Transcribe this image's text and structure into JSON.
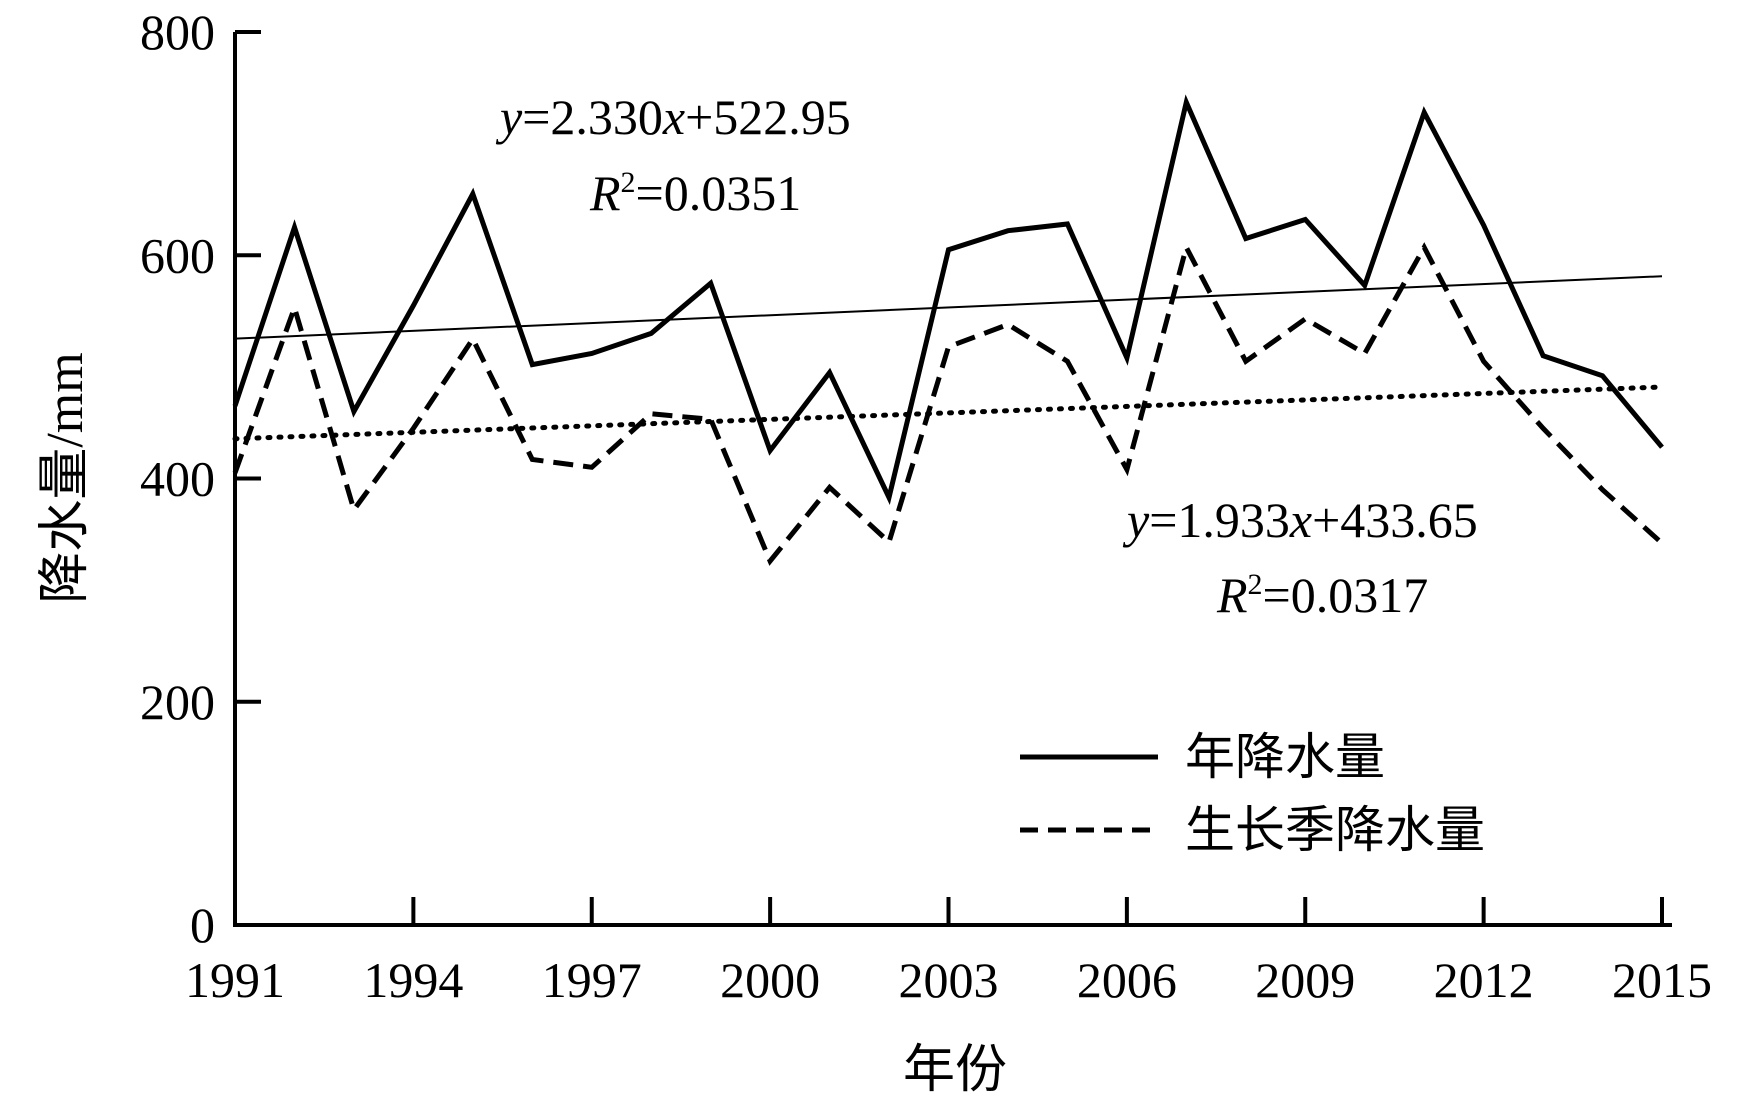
{
  "chart_data": {
    "type": "line",
    "title": "",
    "xlabel": "年份",
    "ylabel": "降水量/mm",
    "xlim": [
      1991,
      2015
    ],
    "ylim": [
      0,
      800
    ],
    "x_ticks": [
      "1991",
      "1994",
      "1997",
      "2000",
      "2003",
      "2006",
      "2009",
      "2012",
      "2015"
    ],
    "y_ticks": [
      "0",
      "200",
      "400",
      "600",
      "800"
    ],
    "grid": false,
    "legend_position": "bottom-right",
    "x": [
      1991,
      1992,
      1993,
      1994,
      1995,
      1996,
      1997,
      1998,
      1999,
      2000,
      2001,
      2002,
      2003,
      2004,
      2005,
      2006,
      2007,
      2008,
      2009,
      2010,
      2011,
      2012,
      2013,
      2014,
      2015
    ],
    "series": [
      {
        "name": "年降水量",
        "style": "solid",
        "values": [
          465,
          625,
          460,
          555,
          655,
          502,
          512,
          530,
          575,
          425,
          495,
          383,
          605,
          622,
          628,
          508,
          737,
          615,
          632,
          573,
          728,
          627,
          510,
          492,
          428
        ]
      },
      {
        "name": "生长季降水量",
        "style": "dashed",
        "values": [
          405,
          553,
          372,
          445,
          525,
          417,
          410,
          458,
          453,
          326,
          392,
          343,
          518,
          538,
          505,
          408,
          607,
          505,
          543,
          512,
          607,
          505,
          445,
          390,
          342
        ]
      }
    ],
    "trendlines": [
      {
        "for": "年降水量",
        "style": "thin-solid",
        "slope": 2.33,
        "intercept": 522.95,
        "eq_y_part": "y",
        "eq_rest": "=2.330",
        "eq_x_part": "x",
        "eq_tail": "+522.95",
        "r2_prefix": "R",
        "r2_sup": "2",
        "r2_value": "=0.0351"
      },
      {
        "for": "生长季降水量",
        "style": "dotted",
        "slope": 1.933,
        "intercept": 433.65,
        "eq_y_part": "y",
        "eq_rest": "=1.933",
        "eq_x_part": "x",
        "eq_tail": "+433.65",
        "r2_prefix": "R",
        "r2_sup": "2",
        "r2_value": "=0.0317"
      }
    ]
  }
}
